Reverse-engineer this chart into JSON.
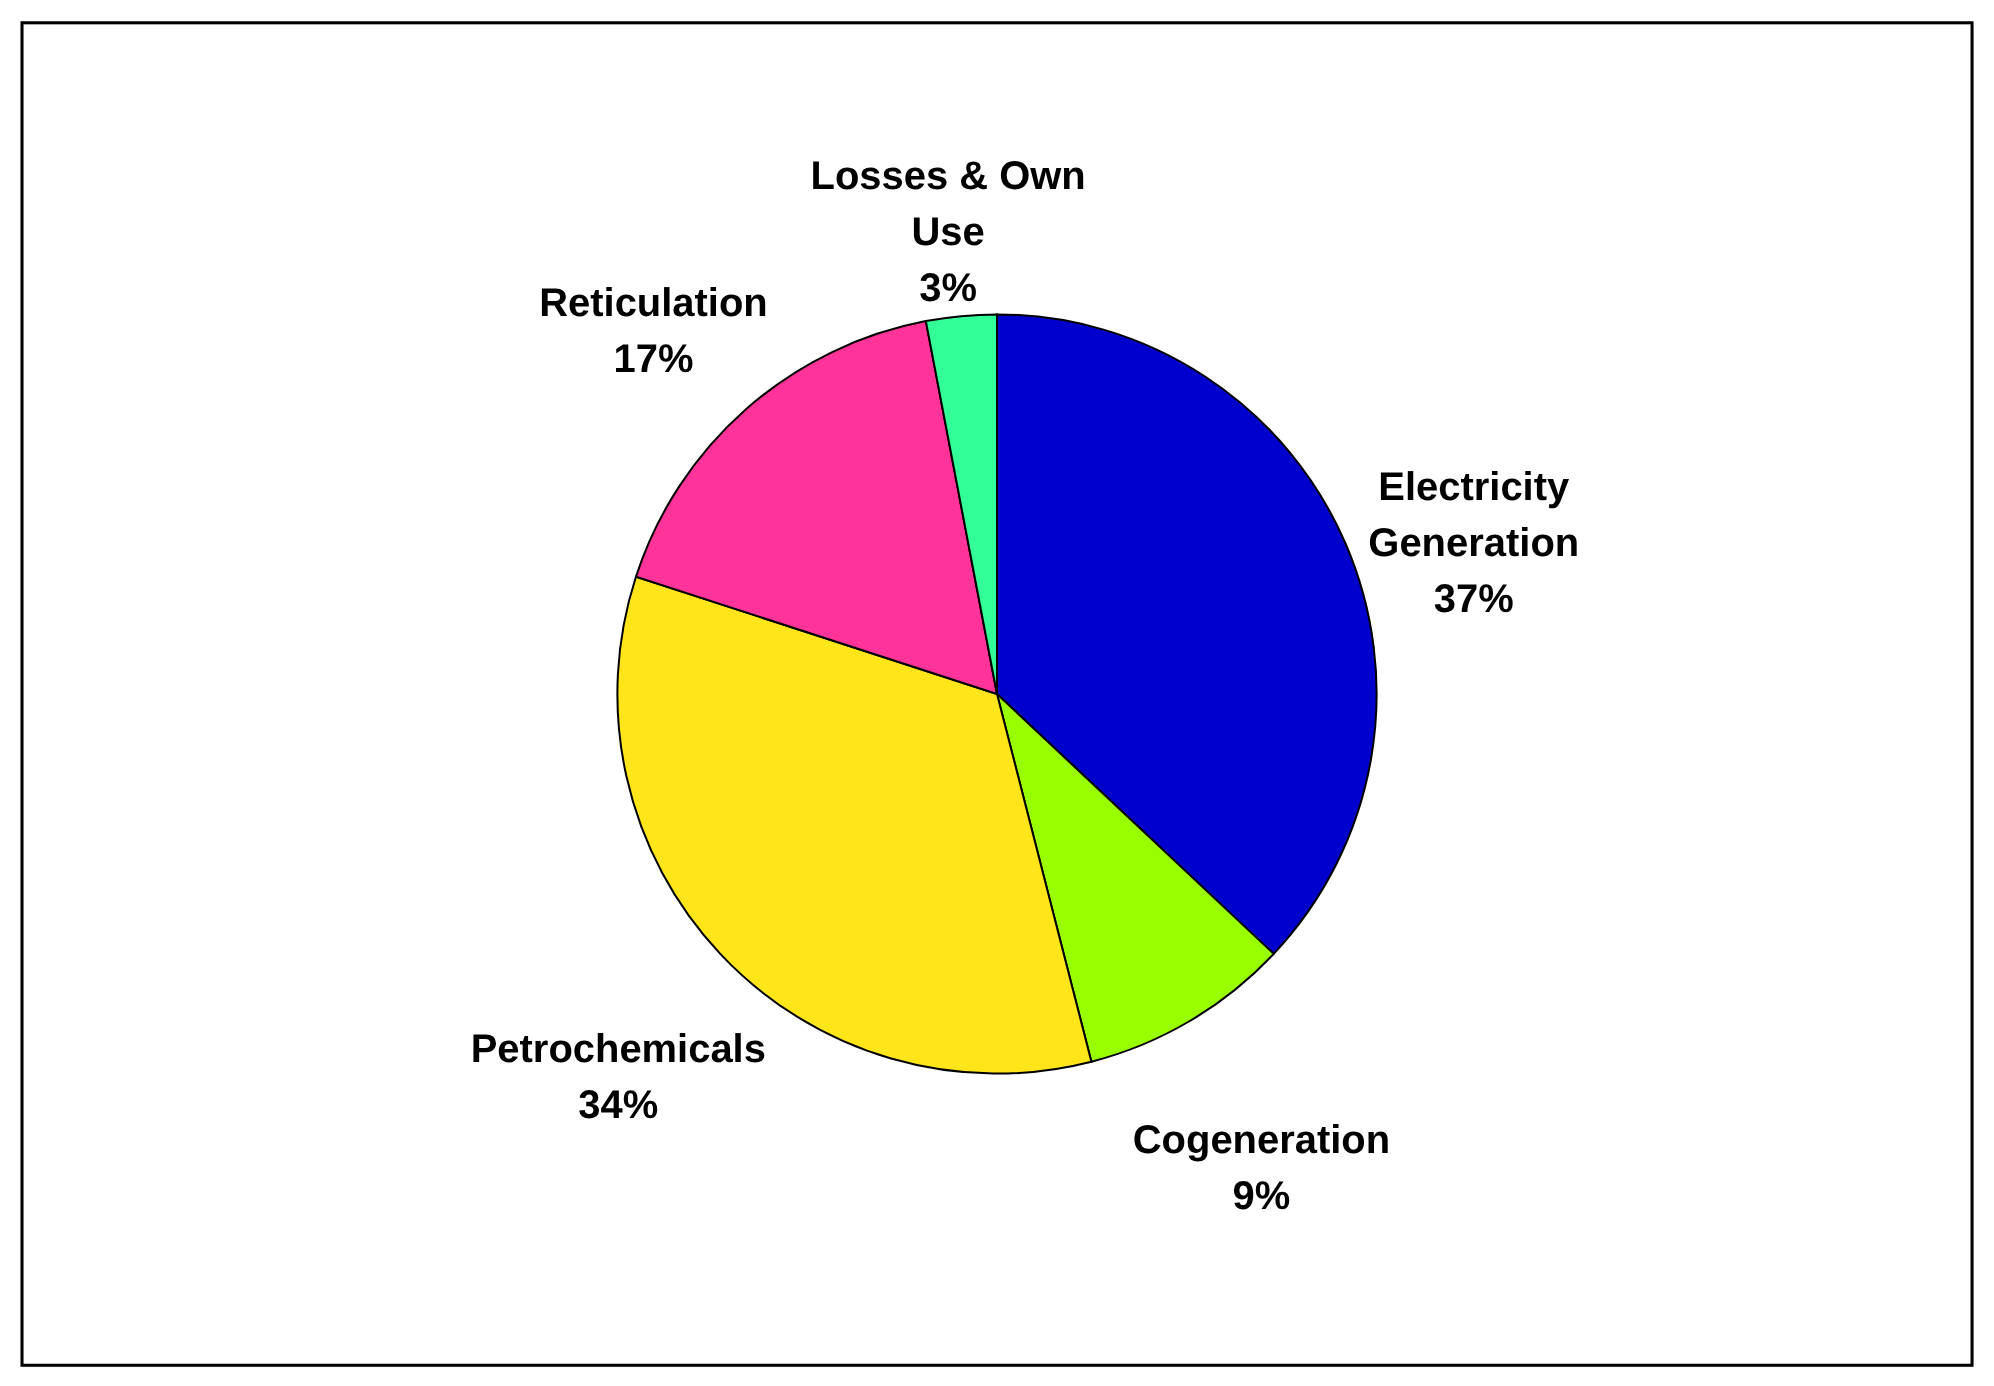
{
  "chart_data": {
    "type": "pie",
    "categories": [
      "Electricity Generation",
      "Cogeneration",
      "Petrochemicals",
      "Reticulation",
      "Losses & Own Use"
    ],
    "values": [
      37,
      9,
      34,
      17,
      3
    ],
    "colors": [
      "#0000cc",
      "#99ff00",
      "#ffe51a",
      "#ff3399",
      "#33ff99"
    ],
    "value_labels": [
      "37%",
      "9%",
      "34%",
      "17%",
      "3%"
    ],
    "legend": false
  }
}
